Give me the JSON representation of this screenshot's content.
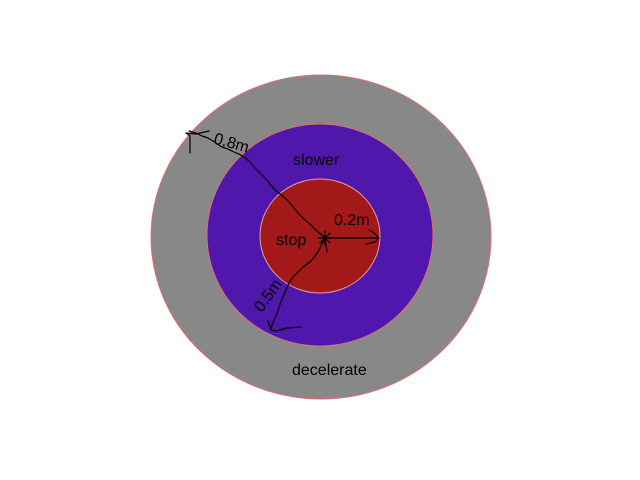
{
  "zones": {
    "outer": {
      "label": "decelerate",
      "radius_text": "0.8m",
      "radius_m": 0.8,
      "fill": "#888888",
      "edge": "#e07070"
    },
    "middle": {
      "label": "slower",
      "radius_text": "0.5m",
      "radius_m": 0.5,
      "fill": "#4f17ab",
      "edge": "#e07070"
    },
    "inner": {
      "label": "stop",
      "radius_text": "0.2m",
      "radius_m": 0.2,
      "fill": "#a31919",
      "edge": "#e0a0a0"
    }
  },
  "colors": {
    "background": "#ffffff",
    "ink": "#000000"
  }
}
